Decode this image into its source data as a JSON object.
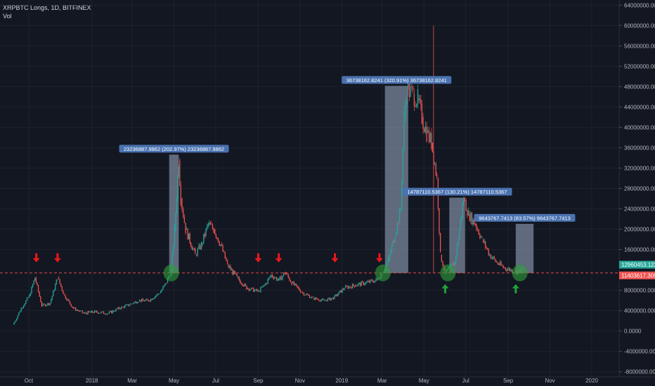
{
  "header": {
    "title": "XRPBTC Longs, 1D, BITFINEX",
    "volume_label": "Vol"
  },
  "colors": {
    "background": "#131722",
    "up": "#26a69a",
    "down": "#ef5350",
    "grid": "#1e222d",
    "box_fill": "#9eafc9",
    "box_label_bg": "#4a72b0",
    "support_line": "#e84a4a",
    "circle": "#2e9e3a",
    "arrow_down": "#e8191b",
    "arrow_up": "#1fa336"
  },
  "chart_data": {
    "type": "line",
    "title": "XRPBTC Longs, 1D, BITFINEX",
    "x_axis": {
      "tick_labels": [
        "Oct",
        "2018",
        "Mar",
        "May",
        "Jul",
        "Sep",
        "Nov",
        "2019",
        "Mar",
        "May",
        "Jul",
        "Sep",
        "Nov",
        "2020"
      ],
      "range": [
        "2017-08-20",
        "2020-02-10"
      ]
    },
    "y_axis": {
      "tick_values": [
        -8000000,
        -4000000,
        0,
        4000000,
        8000000,
        16000000,
        20000000,
        24000000,
        28000000,
        32000000,
        36000000,
        40000000,
        44000000,
        48000000,
        52000000,
        56000000,
        60000000,
        64000000
      ],
      "tick_labels": [
        "-8000000.0000",
        "-4000000.0000",
        "0.0000",
        "4000000.0000",
        "8000000.0000",
        "16000000.0000",
        "20000000.0000",
        "24000000.0000",
        "28000000.0000",
        "32000000.0000",
        "36000000.0000",
        "40000000.0000",
        "44000000.0000",
        "48000000.0000",
        "52000000.0000",
        "56000000.0000",
        "60000000.0000",
        "64000000.0000"
      ],
      "range": [
        -9000000,
        65000000
      ]
    },
    "grid": true,
    "series": [
      {
        "points": [
          [
            "2017-09-08",
            1300000
          ],
          [
            "2017-09-20",
            4500000
          ],
          [
            "2017-10-02",
            7000000
          ],
          [
            "2017-10-10",
            10500000
          ],
          [
            "2017-10-20",
            5000000
          ],
          [
            "2017-11-01",
            5500000
          ],
          [
            "2017-11-12",
            10500000
          ],
          [
            "2017-11-22",
            7000000
          ],
          [
            "2017-12-05",
            4500000
          ],
          [
            "2017-12-20",
            3500000
          ],
          [
            "2018-01-05",
            3800000
          ],
          [
            "2018-01-25",
            3500000
          ],
          [
            "2018-02-10",
            4500000
          ],
          [
            "2018-02-25",
            5200000
          ],
          [
            "2018-03-10",
            6000000
          ],
          [
            "2018-03-25",
            6000000
          ],
          [
            "2018-04-10",
            7500000
          ],
          [
            "2018-04-20",
            9500000
          ],
          [
            "2018-04-27",
            12000000
          ],
          [
            "2018-05-02",
            20000000
          ],
          [
            "2018-05-08",
            33500000
          ],
          [
            "2018-05-11",
            26000000
          ],
          [
            "2018-05-18",
            20000000
          ],
          [
            "2018-06-01",
            15000000
          ],
          [
            "2018-06-10",
            17000000
          ],
          [
            "2018-06-20",
            21000000
          ],
          [
            "2018-06-28",
            20000000
          ],
          [
            "2018-07-08",
            17000000
          ],
          [
            "2018-07-18",
            13000000
          ],
          [
            "2018-08-01",
            10500000
          ],
          [
            "2018-08-15",
            8500000
          ],
          [
            "2018-09-01",
            7800000
          ],
          [
            "2018-09-10",
            9000000
          ],
          [
            "2018-09-20",
            11000000
          ],
          [
            "2018-10-01",
            10000000
          ],
          [
            "2018-10-10",
            11500000
          ],
          [
            "2018-10-20",
            9500000
          ],
          [
            "2018-11-05",
            7500000
          ],
          [
            "2018-11-20",
            6500000
          ],
          [
            "2018-12-05",
            6000000
          ],
          [
            "2018-12-20",
            6500000
          ],
          [
            "2019-01-05",
            8500000
          ],
          [
            "2019-01-20",
            9000000
          ],
          [
            "2019-02-05",
            9500000
          ],
          [
            "2019-02-20",
            10000000
          ],
          [
            "2019-03-01",
            11400000
          ],
          [
            "2019-03-10",
            14000000
          ],
          [
            "2019-03-20",
            19000000
          ],
          [
            "2019-03-28",
            24000000
          ],
          [
            "2019-04-02",
            42000000
          ],
          [
            "2019-04-06",
            47500000
          ],
          [
            "2019-04-15",
            46500000
          ],
          [
            "2019-04-22",
            45500000
          ],
          [
            "2019-04-28",
            42000000
          ],
          [
            "2019-05-05",
            39000000
          ],
          [
            "2019-05-12",
            37000000
          ],
          [
            "2019-05-20",
            30000000
          ],
          [
            "2019-05-25",
            15000000
          ],
          [
            "2019-06-01",
            11400000
          ],
          [
            "2019-06-08",
            12500000
          ],
          [
            "2019-06-15",
            13500000
          ],
          [
            "2019-06-22",
            20000000
          ],
          [
            "2019-06-28",
            26000000
          ],
          [
            "2019-07-05",
            23000000
          ],
          [
            "2019-07-15",
            21000000
          ],
          [
            "2019-07-25",
            18000000
          ],
          [
            "2019-08-05",
            15000000
          ],
          [
            "2019-08-15",
            13500000
          ],
          [
            "2019-08-25",
            12500000
          ],
          [
            "2019-09-05",
            12000000
          ],
          [
            "2019-09-15",
            11600000
          ],
          [
            "2019-09-22",
            12200000
          ]
        ]
      }
    ],
    "support_level": 11403617.3097,
    "current_price": 12960453.122,
    "price_tags": [
      "12960453.1220",
      "11403617.3097"
    ],
    "measure_boxes": [
      {
        "label": "23236887.9862 (202.97%) 23236887.9862",
        "x_start": "2018-04-24",
        "x_end": "2018-05-08",
        "y_low": 11400000,
        "y_high": 34640000
      },
      {
        "label": "36738162.8241 (320.91%) 36738162.8241",
        "x_start": "2019-03-05",
        "x_end": "2019-04-08",
        "y_low": 11400000,
        "y_high": 48140000
      },
      {
        "label": "14787110.5367 (130.21%) 14787110.5367",
        "x_start": "2019-06-07",
        "x_end": "2019-06-30",
        "y_low": 11400000,
        "y_high": 26190000
      },
      {
        "label": "9643767.7413 (83.57%) 9643767.7413",
        "x_start": "2019-09-12",
        "x_end": "2019-10-08",
        "y_low": 11400000,
        "y_high": 21050000
      }
    ],
    "annotations": {
      "down_arrows": [
        "2017-10-12",
        "2017-11-12",
        "2018-09-01",
        "2018-10-01",
        "2018-12-22",
        "2019-02-25"
      ],
      "up_arrows": [
        "2019-06-01",
        "2019-09-12"
      ],
      "circles": [
        "2018-04-27",
        "2019-03-02",
        "2019-06-05",
        "2019-09-18"
      ]
    },
    "y_scale": "linear"
  }
}
